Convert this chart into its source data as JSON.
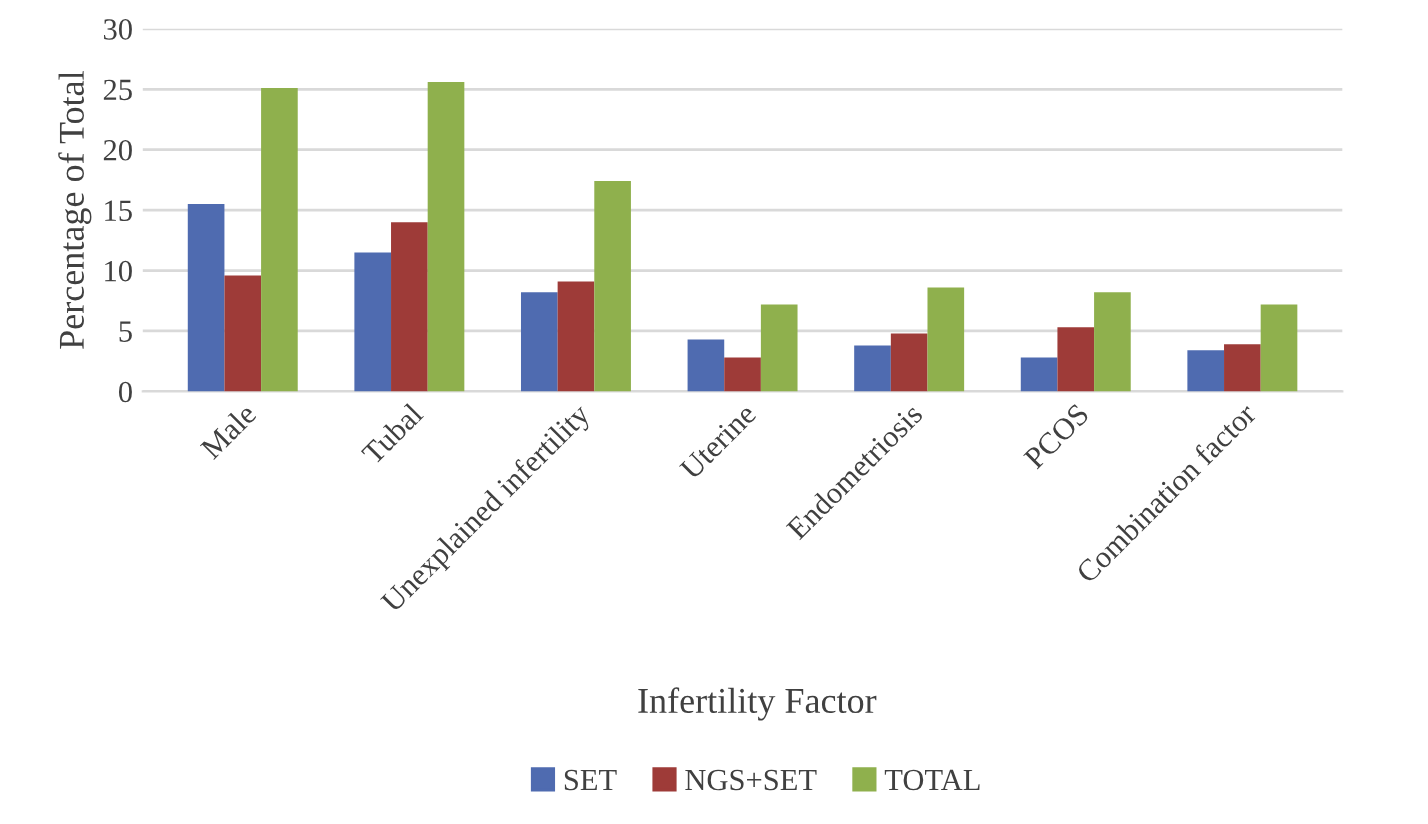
{
  "chart_data": {
    "type": "bar",
    "xlabel": "Infertility Factor",
    "ylabel": "Percentage of Total",
    "categories": [
      "Male",
      "Tubal",
      "Unexplained infertility",
      "Uterine",
      "Endometriosis",
      "PCOS",
      "Combination factor"
    ],
    "series": [
      {
        "name": "SET",
        "color": "#4f6bb0",
        "values": [
          15.5,
          11.5,
          8.2,
          4.3,
          3.8,
          2.8,
          3.4
        ]
      },
      {
        "name": "NGS+SET",
        "color": "#9e3b38",
        "values": [
          9.6,
          14.0,
          9.1,
          2.8,
          4.8,
          5.3,
          3.9
        ]
      },
      {
        "name": "TOTAL",
        "color": "#8fb04d",
        "values": [
          25.1,
          25.6,
          17.4,
          7.2,
          8.6,
          8.2,
          7.2
        ]
      }
    ],
    "ylim": [
      0,
      30
    ],
    "yticks": [
      0,
      5,
      10,
      15,
      20,
      25,
      30
    ],
    "grid": "y",
    "legend": "bottom"
  }
}
